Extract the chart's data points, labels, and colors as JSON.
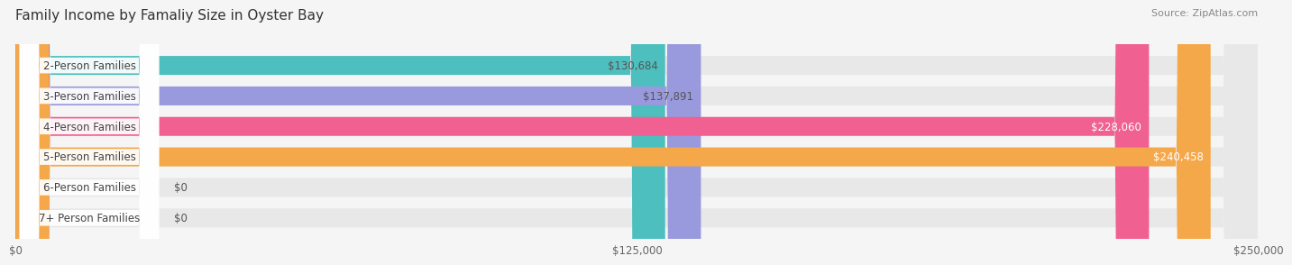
{
  "title": "Family Income by Famaliy Size in Oyster Bay",
  "source": "Source: ZipAtlas.com",
  "categories": [
    "2-Person Families",
    "3-Person Families",
    "4-Person Families",
    "5-Person Families",
    "6-Person Families",
    "7+ Person Families"
  ],
  "values": [
    130684,
    137891,
    228060,
    240458,
    0,
    0
  ],
  "bar_colors": [
    "#4DBFBF",
    "#9999DD",
    "#F06090",
    "#F5A84A",
    "#F4A0A8",
    "#A8C8E8"
  ],
  "label_colors": [
    "#555555",
    "#555555",
    "#ffffff",
    "#ffffff",
    "#555555",
    "#555555"
  ],
  "xlim": [
    0,
    250000
  ],
  "xticks": [
    0,
    125000,
    250000
  ],
  "xtick_labels": [
    "$0",
    "$125,000",
    "$250,000"
  ],
  "value_labels": [
    "$130,684",
    "$137,891",
    "$228,060",
    "$240,458",
    "$0",
    "$0"
  ],
  "background_color": "#f5f5f5",
  "bar_background_color": "#e8e8e8",
  "title_fontsize": 11,
  "source_fontsize": 8,
  "bar_height": 0.62,
  "bar_label_fontsize": 8.5,
  "category_fontsize": 8.5
}
